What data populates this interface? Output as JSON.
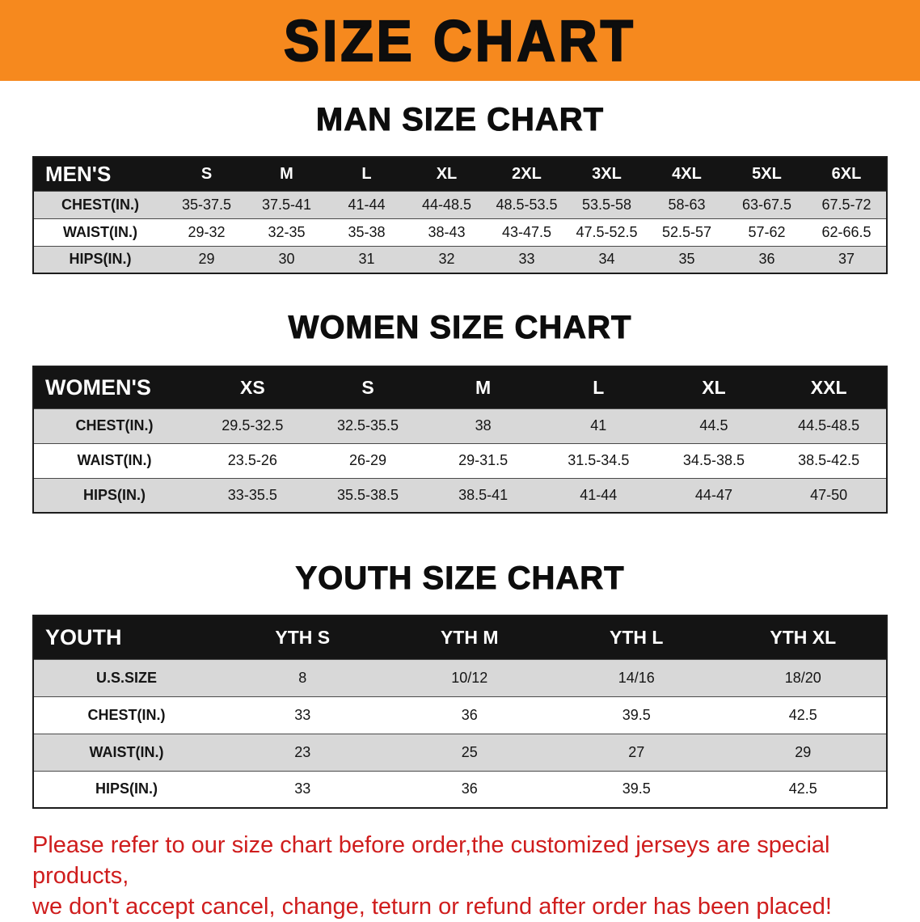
{
  "banner": {
    "title": "SIZE CHART"
  },
  "colors": {
    "banner_bg": "#f6891e",
    "table_header_bg": "#141414",
    "row_alt_bg": "#d8d8d8",
    "disclaimer_red": "#cf1d1d"
  },
  "sections": {
    "men": {
      "heading": "MAN SIZE CHART",
      "table": {
        "label": "MEN'S",
        "sizes": [
          "S",
          "M",
          "L",
          "XL",
          "2XL",
          "3XL",
          "4XL",
          "5XL",
          "6XL"
        ],
        "rows": [
          {
            "label": "CHEST(IN.)",
            "values": [
              "35-37.5",
              "37.5-41",
              "41-44",
              "44-48.5",
              "48.5-53.5",
              "53.5-58",
              "58-63",
              "63-67.5",
              "67.5-72"
            ]
          },
          {
            "label": "WAIST(IN.)",
            "values": [
              "29-32",
              "32-35",
              "35-38",
              "38-43",
              "43-47.5",
              "47.5-52.5",
              "52.5-57",
              "57-62",
              "62-66.5"
            ]
          },
          {
            "label": "HIPS(IN.)",
            "values": [
              "29",
              "30",
              "31",
              "32",
              "33",
              "34",
              "35",
              "36",
              "37"
            ]
          }
        ]
      }
    },
    "women": {
      "heading": "WOMEN SIZE CHART",
      "table": {
        "label": "WOMEN'S",
        "sizes": [
          "XS",
          "S",
          "M",
          "L",
          "XL",
          "XXL"
        ],
        "rows": [
          {
            "label": "CHEST(IN.)",
            "values": [
              "29.5-32.5",
              "32.5-35.5",
              "38",
              "41",
              "44.5",
              "44.5-48.5"
            ]
          },
          {
            "label": "WAIST(IN.)",
            "values": [
              "23.5-26",
              "26-29",
              "29-31.5",
              "31.5-34.5",
              "34.5-38.5",
              "38.5-42.5"
            ]
          },
          {
            "label": "HIPS(IN.)",
            "values": [
              "33-35.5",
              "35.5-38.5",
              "38.5-41",
              "41-44",
              "44-47",
              "47-50"
            ]
          }
        ]
      }
    },
    "youth": {
      "heading": "YOUTH SIZE CHART",
      "table": {
        "label": "YOUTH",
        "sizes": [
          "YTH S",
          "YTH M",
          "YTH L",
          "YTH XL"
        ],
        "rows": [
          {
            "label": "U.S.SIZE",
            "values": [
              "8",
              "10/12",
              "14/16",
              "18/20"
            ]
          },
          {
            "label": "CHEST(IN.)",
            "values": [
              "33",
              "36",
              "39.5",
              "42.5"
            ]
          },
          {
            "label": "WAIST(IN.)",
            "values": [
              "23",
              "25",
              "27",
              "29"
            ]
          },
          {
            "label": "HIPS(IN.)",
            "values": [
              "33",
              "36",
              "39.5",
              "42.5"
            ]
          }
        ]
      }
    }
  },
  "disclaimer": {
    "line1": "Please refer to our size chart before order,the customized jerseys are special products,",
    "line2": "we don't accept cancel, change, teturn or refund after order has been placed!"
  }
}
